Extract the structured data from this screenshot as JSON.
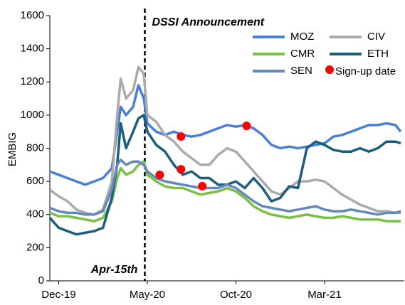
{
  "chart_data": {
    "type": "line",
    "y_label": "EMBIG",
    "x": [
      -0.5,
      0,
      0.5,
      1,
      1.5,
      2,
      2.5,
      3,
      3.3,
      3.5,
      3.8,
      4.2,
      4.5,
      4.8,
      5,
      5.5,
      6,
      6.5,
      7,
      7.5,
      8,
      8.5,
      9,
      9.5,
      10,
      10.5,
      11,
      11.5,
      12,
      12.5,
      13,
      13.5,
      14,
      14.5,
      15,
      15.5,
      16,
      16.5,
      17,
      17.5,
      18,
      18.5,
      19,
      19.3
    ],
    "series": [
      {
        "name": "MOZ",
        "color": "#4a7fd4",
        "values": [
          660,
          640,
          620,
          600,
          580,
          600,
          620,
          680,
          900,
          1050,
          1000,
          1050,
          1180,
          1100,
          950,
          900,
          880,
          900,
          880,
          870,
          880,
          900,
          920,
          940,
          930,
          940,
          920,
          880,
          820,
          800,
          810,
          800,
          810,
          820,
          830,
          870,
          880,
          900,
          920,
          940,
          940,
          950,
          940,
          900
        ]
      },
      {
        "name": "CIV",
        "color": "#ababab",
        "values": [
          550,
          510,
          480,
          430,
          410,
          400,
          430,
          600,
          1000,
          1220,
          1100,
          1150,
          1290,
          1250,
          1000,
          960,
          880,
          840,
          780,
          740,
          700,
          700,
          760,
          800,
          780,
          720,
          660,
          600,
          540,
          520,
          560,
          600,
          600,
          610,
          600,
          560,
          520,
          490,
          460,
          440,
          420,
          420,
          410,
          410
        ]
      },
      {
        "name": "CMR",
        "color": "#7ac143",
        "values": [
          410,
          390,
          390,
          380,
          370,
          360,
          380,
          480,
          620,
          680,
          640,
          660,
          700,
          720,
          640,
          600,
          570,
          560,
          560,
          540,
          520,
          530,
          540,
          560,
          540,
          500,
          450,
          420,
          400,
          390,
          380,
          390,
          400,
          390,
          380,
          380,
          390,
          380,
          370,
          370,
          370,
          360,
          360,
          360
        ]
      },
      {
        "name": "ETH",
        "color": "#1b5e7e",
        "values": [
          380,
          320,
          300,
          280,
          290,
          300,
          320,
          500,
          700,
          950,
          800,
          900,
          980,
          1000,
          900,
          820,
          780,
          700,
          640,
          660,
          620,
          620,
          580,
          580,
          600,
          560,
          620,
          560,
          480,
          500,
          570,
          560,
          800,
          840,
          820,
          790,
          780,
          780,
          800,
          780,
          800,
          840,
          840,
          830
        ]
      },
      {
        "name": "SEN",
        "color": "#6388bb",
        "values": [
          440,
          420,
          410,
          410,
          400,
          400,
          420,
          550,
          700,
          730,
          700,
          720,
          720,
          700,
          660,
          620,
          600,
          590,
          580,
          570,
          560,
          560,
          560,
          580,
          560,
          520,
          480,
          450,
          440,
          430,
          420,
          430,
          440,
          450,
          430,
          420,
          420,
          430,
          420,
          410,
          400,
          410,
          410,
          420
        ]
      }
    ],
    "points": {
      "name": "Sign-up date",
      "color": "#ff0000",
      "x": [
        5.7,
        6.9,
        6.9,
        8.1,
        10.6
      ],
      "values": [
        639,
        673,
        871,
        571,
        935
      ]
    },
    "vline": {
      "x": 4.86,
      "labels": [
        "DSSI Announcement",
        "Apr-15th"
      ]
    },
    "xlim": [
      -0.5,
      19.5
    ],
    "xticks": [
      {
        "value": 0,
        "label": "Dec-19"
      },
      {
        "value": 5,
        "label": "May-20"
      },
      {
        "value": 10,
        "label": "Oct-20"
      },
      {
        "value": 15,
        "label": "Mar-21"
      }
    ],
    "ylim": [
      0,
      1600
    ],
    "yticks": [
      0,
      200,
      400,
      600,
      800,
      1000,
      1200,
      1400,
      1600
    ],
    "grid": false
  }
}
